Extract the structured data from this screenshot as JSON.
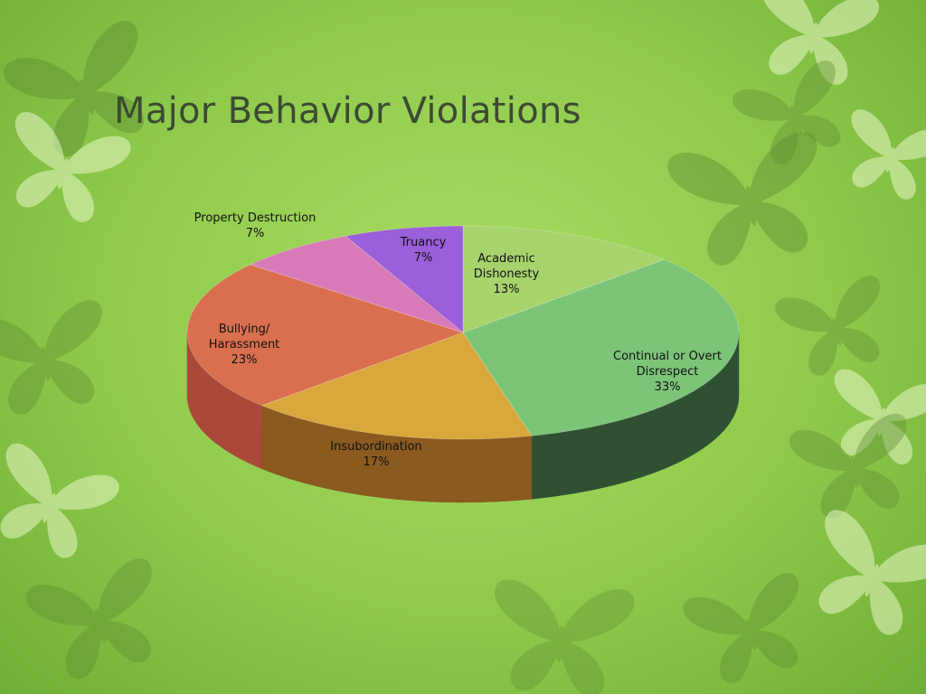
{
  "slide": {
    "title": "Major Behavior Violations"
  },
  "chart_data": {
    "type": "pie",
    "title": "",
    "start_angle_deg": -90,
    "direction": "clockwise",
    "legend": "none",
    "slices": [
      {
        "label_lines": [
          "Academic",
          "Dishonesty"
        ],
        "value": 13,
        "display": "13%",
        "color": "#a7d36d",
        "side_color": "#6d8f43"
      },
      {
        "label_lines": [
          "Continual or Overt",
          "Disrespect"
        ],
        "value": 33,
        "display": "33%",
        "color": "#7cc478",
        "side_color": "#2f5132"
      },
      {
        "label_lines": [
          "Insubordination"
        ],
        "value": 17,
        "display": "17%",
        "color": "#d9a73b",
        "side_color": "#8a5a1e"
      },
      {
        "label_lines": [
          "Bullying/",
          "Harassment"
        ],
        "value": 23,
        "display": "23%",
        "color": "#d96f4f",
        "side_color": "#a8493a"
      },
      {
        "label_lines": [
          "Property Destruction"
        ],
        "value": 7,
        "display": "7%",
        "color": "#d97ab8",
        "side_color": "#9c4d80"
      },
      {
        "label_lines": [
          "Truancy"
        ],
        "value": 7,
        "display": "7%",
        "color": "#9b5fd9",
        "side_color": "#5f3a8c"
      }
    ]
  }
}
